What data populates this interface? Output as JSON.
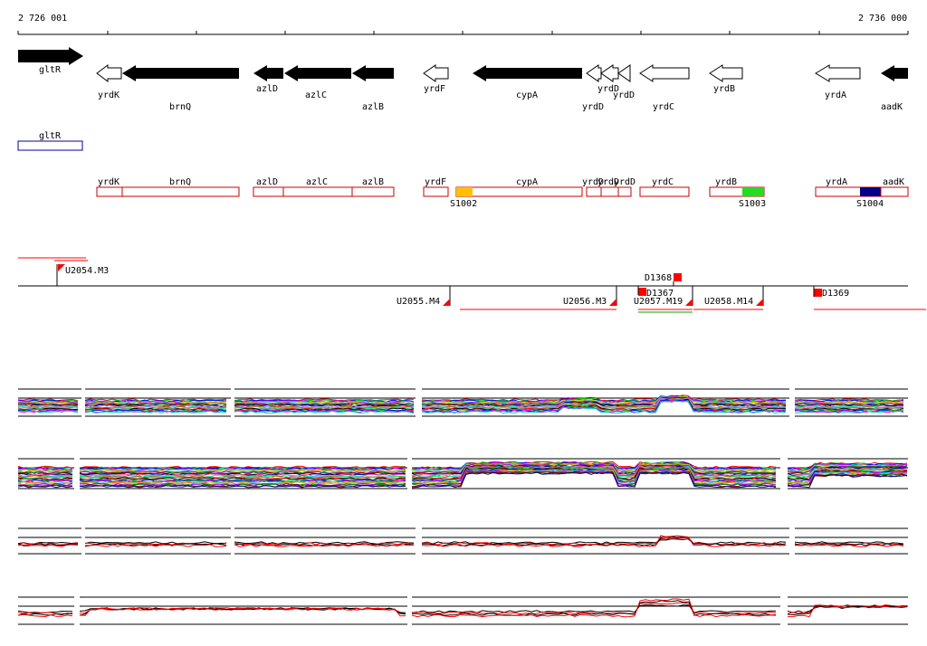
{
  "ruler": {
    "start_label": "2 726 001",
    "end_label": "2 736 000"
  },
  "genes": [
    {
      "name": "gltR",
      "strand": "+",
      "fill": "black"
    },
    {
      "name": "yrdK",
      "strand": "-",
      "fill": "white"
    },
    {
      "name": "brnQ",
      "strand": "-",
      "fill": "black"
    },
    {
      "name": "azlD",
      "strand": "-",
      "fill": "black"
    },
    {
      "name": "azlC",
      "strand": "-",
      "fill": "black"
    },
    {
      "name": "azlB",
      "strand": "-",
      "fill": "black"
    },
    {
      "name": "yrdF",
      "strand": "-",
      "fill": "white"
    },
    {
      "name": "cypA",
      "strand": "-",
      "fill": "black"
    },
    {
      "name": "yrdD",
      "strand": "-",
      "fill": "white"
    },
    {
      "name": "yrdD",
      "strand": "-",
      "fill": "white"
    },
    {
      "name": "yrdD",
      "strand": "-",
      "fill": "white"
    },
    {
      "name": "yrdC",
      "strand": "-",
      "fill": "white"
    },
    {
      "name": "yrdB",
      "strand": "-",
      "fill": "white"
    },
    {
      "name": "yrdA",
      "strand": "-",
      "fill": "white"
    },
    {
      "name": "aadK",
      "strand": "-",
      "fill": "black"
    }
  ],
  "sense_units": [
    {
      "label": "gltR"
    }
  ],
  "antisense_units": [
    {
      "label": "yrdK"
    },
    {
      "label": "brnQ"
    },
    {
      "label": "azlD"
    },
    {
      "label": "azlC"
    },
    {
      "label": "azlB"
    },
    {
      "label": "yrdF"
    },
    {
      "label": "cypA"
    },
    {
      "label": "yrdD"
    },
    {
      "label": "yrdD"
    },
    {
      "label": "yrdD"
    },
    {
      "label": "yrdC"
    },
    {
      "label": "yrdB"
    },
    {
      "label": "yrdA"
    },
    {
      "label": "aadK"
    }
  ],
  "segments": [
    {
      "label": "S1002",
      "color": "#ffc000"
    },
    {
      "label": "S1003",
      "color": "#22dd22"
    },
    {
      "label": "S1004",
      "color": "#000088"
    }
  ],
  "features": [
    {
      "label": "U2054.M3"
    },
    {
      "label": "U2055.M4"
    },
    {
      "label": "U2056.M3"
    },
    {
      "label": "U2057.M19"
    },
    {
      "label": "U2058.M14"
    },
    {
      "label": "D1368"
    },
    {
      "label": "D1367"
    },
    {
      "label": "D1369"
    }
  ],
  "colors": {
    "gene_outline": "#000000",
    "unit_outline_sense": "#0000aa",
    "unit_outline_antisense": "#cc0000",
    "feature_red": "#ff0000",
    "green_line": "#00aa00"
  }
}
